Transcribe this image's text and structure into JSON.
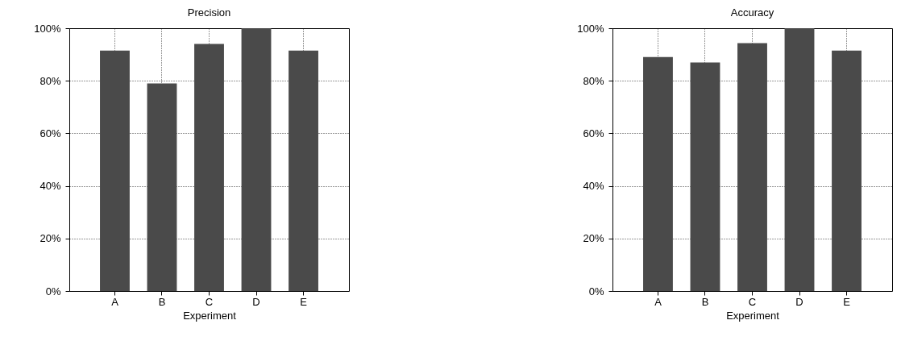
{
  "chart_data": [
    {
      "type": "bar",
      "title": "Precision",
      "xlabel": "Experiment",
      "categories": [
        "A",
        "B",
        "C",
        "D",
        "E"
      ],
      "values": [
        91.5,
        79,
        94,
        100,
        91.5
      ],
      "color": "#4a4a4a",
      "ylim": [
        0,
        100
      ],
      "yticks": [
        {
          "value": 0,
          "label": "0%"
        },
        {
          "value": 20,
          "label": "20%"
        },
        {
          "value": 40,
          "label": "40%"
        },
        {
          "value": 60,
          "label": "60%"
        },
        {
          "value": 80,
          "label": "80%"
        },
        {
          "value": 100,
          "label": "100%"
        }
      ],
      "grid": true
    },
    {
      "type": "bar",
      "title": "Accuracy",
      "xlabel": "Experiment",
      "categories": [
        "A",
        "B",
        "C",
        "D",
        "E"
      ],
      "values": [
        89,
        87,
        94.3,
        100,
        91.5
      ],
      "color": "#4a4a4a",
      "ylim": [
        0,
        100
      ],
      "yticks": [
        {
          "value": 0,
          "label": "0%"
        },
        {
          "value": 20,
          "label": "20%"
        },
        {
          "value": 40,
          "label": "40%"
        },
        {
          "value": 60,
          "label": "60%"
        },
        {
          "value": 80,
          "label": "80%"
        },
        {
          "value": 100,
          "label": "100%"
        }
      ],
      "grid": true
    }
  ]
}
